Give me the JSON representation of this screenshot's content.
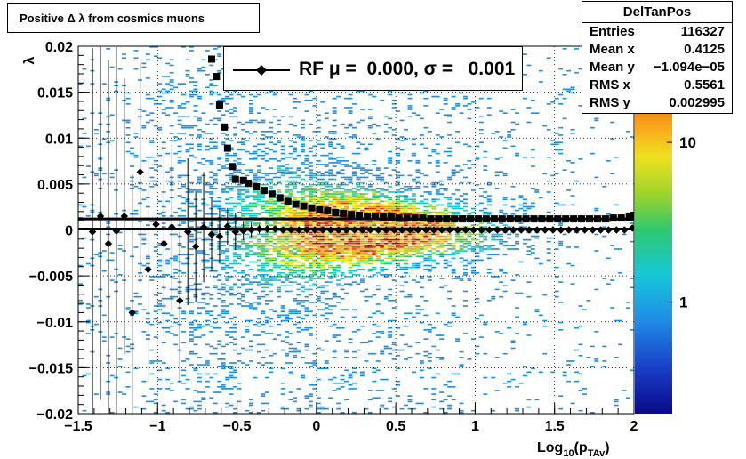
{
  "title": "Positive Δ λ from cosmics muons",
  "stats": {
    "name": "DelTanPos",
    "rows": [
      {
        "key": "Entries",
        "value": "116327"
      },
      {
        "key": "Mean x",
        "value": "0.4125"
      },
      {
        "key": "Mean y",
        "value": "−1.094e−05"
      },
      {
        "key": "RMS x",
        "value": "0.5561"
      },
      {
        "key": "RMS y",
        "value": "0.002995"
      }
    ]
  },
  "legend": {
    "label": "RF μ =  0.000, σ =   0.001"
  },
  "colors": {
    "profile": "#000000",
    "palette": [
      "#0a0a87",
      "#1a3cc8",
      "#1e90e6",
      "#17c8d8",
      "#2ec86e",
      "#a0d42a",
      "#f0e020",
      "#f89a18",
      "#e8360f",
      "#b01010"
    ]
  },
  "chart_data": {
    "type": "heatmap",
    "title": "Positive Δ λ from cosmics muons",
    "xlabel": "Log10(pTAv)",
    "ylabel": "λ",
    "xlim": [
      -1.5,
      2.0
    ],
    "ylim": [
      -0.02,
      0.02
    ],
    "x_ticks": [
      "−1.5",
      "−1",
      "−0.5",
      "0",
      "0.5",
      "1",
      "1.5",
      "2"
    ],
    "x_tick_values": [
      -1.5,
      -1.0,
      -0.5,
      0,
      0.5,
      1.0,
      1.5,
      2.0
    ],
    "y_ticks": [
      "−0.02",
      "−0.015",
      "−0.01",
      "−0.005",
      "0",
      "0.005",
      "0.01",
      "0.015",
      "0.02"
    ],
    "y_tick_values": [
      -0.02,
      -0.015,
      -0.01,
      -0.005,
      0,
      0.005,
      0.01,
      0.015,
      0.02
    ],
    "color_scale": "log",
    "color_ticks": [
      "1",
      "10"
    ],
    "color_tick_values": [
      1,
      10
    ],
    "color_max": 40,
    "grid": true,
    "profile_mean": {
      "x": [
        -1.41,
        -1.36,
        -1.31,
        -1.26,
        -1.21,
        -1.16,
        -1.11,
        -1.06,
        -1.01,
        -0.96,
        -0.91,
        -0.86,
        -0.81,
        -0.76,
        -0.71,
        -0.66,
        -0.61,
        -0.56,
        -0.51,
        -0.46,
        -0.41,
        -0.36,
        -0.31,
        -0.26,
        -0.21,
        -0.16,
        -0.11,
        -0.06,
        -0.01,
        0.04,
        0.09,
        0.14,
        0.19,
        0.24,
        0.29,
        0.34,
        0.39,
        0.44,
        0.49,
        0.54,
        0.59,
        0.64,
        0.69,
        0.74,
        0.79,
        0.84,
        0.89,
        0.94,
        0.99,
        1.04,
        1.09,
        1.14,
        1.19,
        1.24,
        1.29,
        1.34,
        1.39,
        1.44,
        1.49,
        1.54,
        1.59,
        1.64,
        1.69,
        1.74,
        1.79,
        1.84,
        1.89,
        1.94,
        1.99
      ],
      "y": [
        -0.0002,
        0.0015,
        -0.0015,
        -0.0001,
        0.0015,
        -0.009,
        0.0063,
        -0.0043,
        0.0006,
        -0.0015,
        0.0003,
        -0.0077,
        -0.0002,
        -0.0018,
        0.0003,
        -0.0005,
        -0.0007,
        0.0004,
        -0.0002,
        -0.0001,
        0.0,
        0.0001,
        0.0001,
        0.0001,
        0.0,
        0.0,
        0.0,
        0.0,
        0.0,
        0.0,
        0.0,
        0.0,
        0.0,
        0.0,
        0.0,
        0.0,
        0.0,
        0.0,
        0.0,
        0.0,
        0.0,
        0.0,
        0.0,
        0.0,
        0.0,
        0.0,
        0.0,
        0.0,
        0.0,
        0.0,
        0.0,
        0.0,
        0.0,
        0.0,
        0.0,
        0.0,
        0.0,
        0.0,
        0.0,
        0.0,
        0.0,
        0.0,
        0.0,
        0.0,
        0.0,
        0.0,
        0.0,
        0.0,
        0.0002
      ],
      "err": [
        0.02,
        0.02,
        0.02,
        0.02,
        0.015,
        0.015,
        0.012,
        0.012,
        0.01,
        0.01,
        0.009,
        0.009,
        0.008,
        0.006,
        0.006,
        0.004,
        0.003,
        0.002,
        0.002,
        0.001,
        0.0008,
        0.0005,
        0.0004,
        0.0003,
        0.0003,
        0.0003,
        0.0002,
        0.0002,
        0.0002,
        0.0002,
        0.0002,
        0.0002,
        0.0002,
        0.0002,
        0.0002,
        0.0002,
        0.0002,
        0.0002,
        0.0002,
        0.0002,
        0.0002,
        0.0002,
        0.0002,
        0.0002,
        0.0002,
        0.0002,
        0.0002,
        0.0002,
        0.0002,
        0.0002,
        0.0002,
        0.0002,
        0.0002,
        0.0002,
        0.0002,
        0.0002,
        0.0002,
        0.0002,
        0.0002,
        0.0002,
        0.0002,
        0.0002,
        0.0002,
        0.0002,
        0.0002,
        0.0002,
        0.0002,
        0.0002,
        0.0002
      ]
    },
    "profile_rms": {
      "x": [
        -0.66,
        -0.63,
        -0.61,
        -0.58,
        -0.56,
        -0.53,
        -0.51,
        -0.46,
        -0.43,
        -0.38,
        -0.33,
        -0.28,
        -0.23,
        -0.18,
        -0.13,
        -0.08,
        -0.03,
        0.02,
        0.07,
        0.12,
        0.17,
        0.22,
        0.27,
        0.32,
        0.37,
        0.42,
        0.47,
        0.52,
        0.57,
        0.62,
        0.67,
        0.72,
        0.77,
        0.82,
        0.87,
        0.92,
        0.97,
        1.02,
        1.07,
        1.12,
        1.17,
        1.22,
        1.27,
        1.32,
        1.37,
        1.42,
        1.47,
        1.52,
        1.57,
        1.62,
        1.67,
        1.72,
        1.77,
        1.82,
        1.87,
        1.92,
        1.97,
        2.0
      ],
      "y": [
        0.0186,
        0.0167,
        0.0136,
        0.0112,
        0.0089,
        0.0069,
        0.0055,
        0.0054,
        0.0051,
        0.0047,
        0.0043,
        0.0039,
        0.0035,
        0.0031,
        0.0028,
        0.0026,
        0.0024,
        0.0022,
        0.0021,
        0.0019,
        0.0018,
        0.0017,
        0.0016,
        0.0015,
        0.0015,
        0.0014,
        0.0014,
        0.0013,
        0.0013,
        0.0013,
        0.0013,
        0.0012,
        0.0012,
        0.0012,
        0.0012,
        0.0012,
        0.0012,
        0.0012,
        0.0012,
        0.0012,
        0.0012,
        0.0012,
        0.0012,
        0.0012,
        0.0012,
        0.0012,
        0.0012,
        0.0012,
        0.0012,
        0.0012,
        0.0012,
        0.0012,
        0.0012,
        0.0012,
        0.0013,
        0.0013,
        0.0014,
        0.0016
      ]
    },
    "fit_lines": [
      {
        "y": 0.0012
      },
      {
        "y": 0.0001
      }
    ]
  }
}
